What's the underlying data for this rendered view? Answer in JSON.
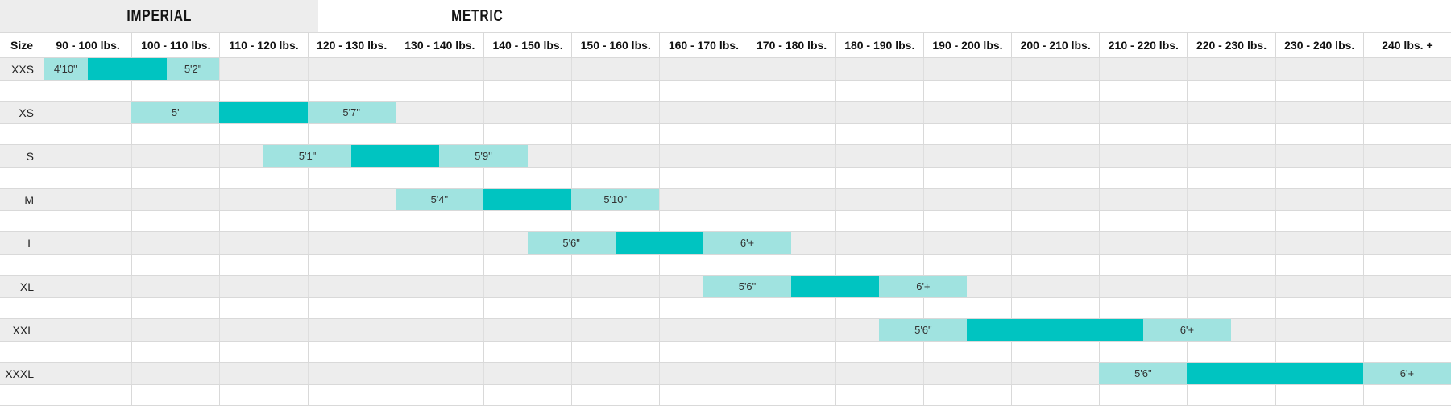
{
  "tabs": [
    {
      "label": "IMPERIAL",
      "active": true
    },
    {
      "label": "METRIC",
      "active": false
    }
  ],
  "table": {
    "size_header": "Size",
    "weight_columns": [
      "90 - 100 lbs.",
      "100 - 110 lbs.",
      "110 - 120 lbs.",
      "120 - 130 lbs.",
      "130 - 140 lbs.",
      "140 - 150 lbs.",
      "150 - 160 lbs.",
      "160 - 170 lbs.",
      "170 - 180 lbs.",
      "180 - 190 lbs.",
      "190 - 200 lbs.",
      "200 - 210 lbs.",
      "210 - 220 lbs.",
      "220 - 230 lbs.",
      "230 - 240 lbs.",
      "240 lbs. +"
    ],
    "rows": [
      {
        "size": "XXS",
        "segments": [
          {
            "start": 0,
            "end": 0.5,
            "shade": "light",
            "label": "4'10\""
          },
          {
            "start": 0.5,
            "end": 1.4,
            "shade": "dark",
            "label": ""
          },
          {
            "start": 1.4,
            "end": 2,
            "shade": "light",
            "label": "5'2\""
          }
        ]
      },
      {
        "size": "XS",
        "segments": [
          {
            "start": 1,
            "end": 2,
            "shade": "light",
            "label": "5'"
          },
          {
            "start": 2,
            "end": 3,
            "shade": "dark",
            "label": ""
          },
          {
            "start": 3,
            "end": 4,
            "shade": "light",
            "label": "5'7\""
          }
        ]
      },
      {
        "size": "S",
        "segments": [
          {
            "start": 2.5,
            "end": 3.5,
            "shade": "light",
            "label": "5'1\""
          },
          {
            "start": 3.5,
            "end": 4.5,
            "shade": "dark",
            "label": ""
          },
          {
            "start": 4.5,
            "end": 5.5,
            "shade": "light",
            "label": "5'9\""
          }
        ]
      },
      {
        "size": "M",
        "segments": [
          {
            "start": 4,
            "end": 5,
            "shade": "light",
            "label": "5'4\""
          },
          {
            "start": 5,
            "end": 6,
            "shade": "dark",
            "label": ""
          },
          {
            "start": 6,
            "end": 7,
            "shade": "light",
            "label": "5'10\""
          }
        ]
      },
      {
        "size": "L",
        "segments": [
          {
            "start": 5.5,
            "end": 6.5,
            "shade": "light",
            "label": "5'6\""
          },
          {
            "start": 6.5,
            "end": 7.5,
            "shade": "dark",
            "label": ""
          },
          {
            "start": 7.5,
            "end": 8.5,
            "shade": "light",
            "label": "6'+"
          }
        ]
      },
      {
        "size": "XL",
        "segments": [
          {
            "start": 7.5,
            "end": 8.5,
            "shade": "light",
            "label": "5'6\""
          },
          {
            "start": 8.5,
            "end": 9.5,
            "shade": "dark",
            "label": ""
          },
          {
            "start": 9.5,
            "end": 10.5,
            "shade": "light",
            "label": "6'+"
          }
        ]
      },
      {
        "size": "XXL",
        "segments": [
          {
            "start": 9.5,
            "end": 10.5,
            "shade": "light",
            "label": "5'6\""
          },
          {
            "start": 10.5,
            "end": 12.5,
            "shade": "dark",
            "label": ""
          },
          {
            "start": 12.5,
            "end": 13.5,
            "shade": "light",
            "label": "6'+"
          }
        ]
      },
      {
        "size": "XXXL",
        "segments": [
          {
            "start": 12,
            "end": 13,
            "shade": "light",
            "label": "5'6\""
          },
          {
            "start": 13,
            "end": 15,
            "shade": "dark",
            "label": ""
          },
          {
            "start": 15,
            "end": 16,
            "shade": "light",
            "label": "6'+"
          }
        ]
      }
    ]
  },
  "chart_data": {
    "type": "table",
    "title": "Imperial size chart: height range bars across weight columns",
    "categories": [
      "90 - 100 lbs.",
      "100 - 110 lbs.",
      "110 - 120 lbs.",
      "120 - 130 lbs.",
      "130 - 140 lbs.",
      "140 - 150 lbs.",
      "150 - 160 lbs.",
      "160 - 170 lbs.",
      "170 - 180 lbs.",
      "180 - 190 lbs.",
      "190 - 200 lbs.",
      "200 - 210 lbs.",
      "210 - 220 lbs.",
      "220 - 230 lbs.",
      "230 - 240 lbs.",
      "240 lbs. +"
    ],
    "rows": [
      {
        "size": "XXS",
        "min_height": "4'10\"",
        "max_height": "5'2\"",
        "bar_cols": [
          0,
          2
        ],
        "ideal_cols": [
          0.5,
          1.4
        ]
      },
      {
        "size": "XS",
        "min_height": "5'",
        "max_height": "5'7\"",
        "bar_cols": [
          1,
          4
        ],
        "ideal_cols": [
          2,
          3
        ]
      },
      {
        "size": "S",
        "min_height": "5'1\"",
        "max_height": "5'9\"",
        "bar_cols": [
          2.5,
          5.5
        ],
        "ideal_cols": [
          3.5,
          4.5
        ]
      },
      {
        "size": "M",
        "min_height": "5'4\"",
        "max_height": "5'10\"",
        "bar_cols": [
          4,
          7
        ],
        "ideal_cols": [
          5,
          6
        ]
      },
      {
        "size": "L",
        "min_height": "5'6\"",
        "max_height": "6'+",
        "bar_cols": [
          5.5,
          8.5
        ],
        "ideal_cols": [
          6.5,
          7.5
        ]
      },
      {
        "size": "XL",
        "min_height": "5'6\"",
        "max_height": "6'+",
        "bar_cols": [
          7.5,
          10.5
        ],
        "ideal_cols": [
          8.5,
          9.5
        ]
      },
      {
        "size": "XXL",
        "min_height": "5'6\"",
        "max_height": "6'+",
        "bar_cols": [
          9.5,
          13.5
        ],
        "ideal_cols": [
          10.5,
          12.5
        ]
      },
      {
        "size": "XXXL",
        "min_height": "5'6\"",
        "max_height": "6'+",
        "bar_cols": [
          12,
          16
        ],
        "ideal_cols": [
          13,
          15
        ]
      }
    ],
    "legend_position": "none",
    "grid": true
  },
  "colors": {
    "light_teal": "#A0E3E0",
    "dark_teal": "#00C4C1",
    "row_gray": "#EDEDED",
    "tab_bg": "#EDEDED",
    "border": "#D9D9D9"
  }
}
